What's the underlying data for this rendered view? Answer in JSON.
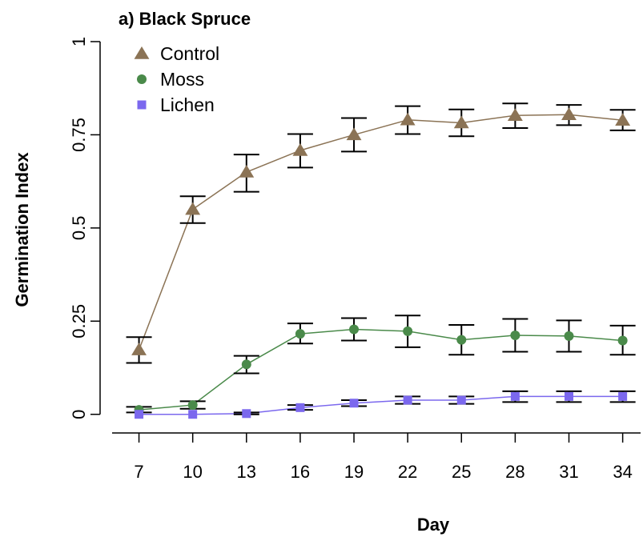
{
  "chart_data": {
    "type": "line",
    "title": "a) Black Spruce",
    "xlabel": "Day",
    "ylabel": "Germination Index",
    "x": [
      7,
      10,
      13,
      16,
      19,
      22,
      25,
      28,
      31,
      34
    ],
    "xticks": [
      "7",
      "10",
      "13",
      "16",
      "19",
      "22",
      "25",
      "28",
      "31",
      "34"
    ],
    "yticks": [
      {
        "value": 0,
        "label": "0"
      },
      {
        "value": 0.25,
        "label": "0.25"
      },
      {
        "value": 0.5,
        "label": "0.5"
      },
      {
        "value": 0.75,
        "label": "0.75"
      },
      {
        "value": 1,
        "label": "1"
      }
    ],
    "xlim": [
      5.5,
      35
    ],
    "ylim": [
      -0.05,
      1.0
    ],
    "legend_position": "top-left",
    "grid": false,
    "series": [
      {
        "name": "Control",
        "marker": "triangle",
        "color": "#8b7355",
        "values": [
          0.173,
          0.55,
          0.65,
          0.708,
          0.75,
          0.79,
          0.782,
          0.802,
          0.804,
          0.789
        ],
        "err_low": [
          0.138,
          0.513,
          0.597,
          0.662,
          0.705,
          0.752,
          0.746,
          0.768,
          0.776,
          0.762
        ],
        "err_high": [
          0.207,
          0.585,
          0.697,
          0.752,
          0.795,
          0.827,
          0.818,
          0.834,
          0.83,
          0.817
        ]
      },
      {
        "name": "Moss",
        "marker": "circle",
        "color": "#4a8a4a",
        "values": [
          0.012,
          0.025,
          0.134,
          0.216,
          0.228,
          0.223,
          0.2,
          0.212,
          0.21,
          0.198
        ],
        "err_low": [
          0.005,
          0.015,
          0.11,
          0.19,
          0.198,
          0.18,
          0.16,
          0.168,
          0.168,
          0.16
        ],
        "err_high": [
          0.02,
          0.035,
          0.157,
          0.244,
          0.258,
          0.265,
          0.24,
          0.256,
          0.252,
          0.238
        ]
      },
      {
        "name": "Lichen",
        "marker": "square",
        "color": "#7b68ee",
        "values": [
          0.0,
          0.0,
          0.002,
          0.018,
          0.03,
          0.038,
          0.038,
          0.048,
          0.048,
          0.048
        ],
        "err_low": [
          0.0,
          0.0,
          0.0,
          0.012,
          0.022,
          0.028,
          0.028,
          0.033,
          0.033,
          0.033
        ],
        "err_high": [
          0.0,
          0.0,
          0.005,
          0.025,
          0.038,
          0.048,
          0.048,
          0.062,
          0.062,
          0.062
        ]
      }
    ]
  }
}
